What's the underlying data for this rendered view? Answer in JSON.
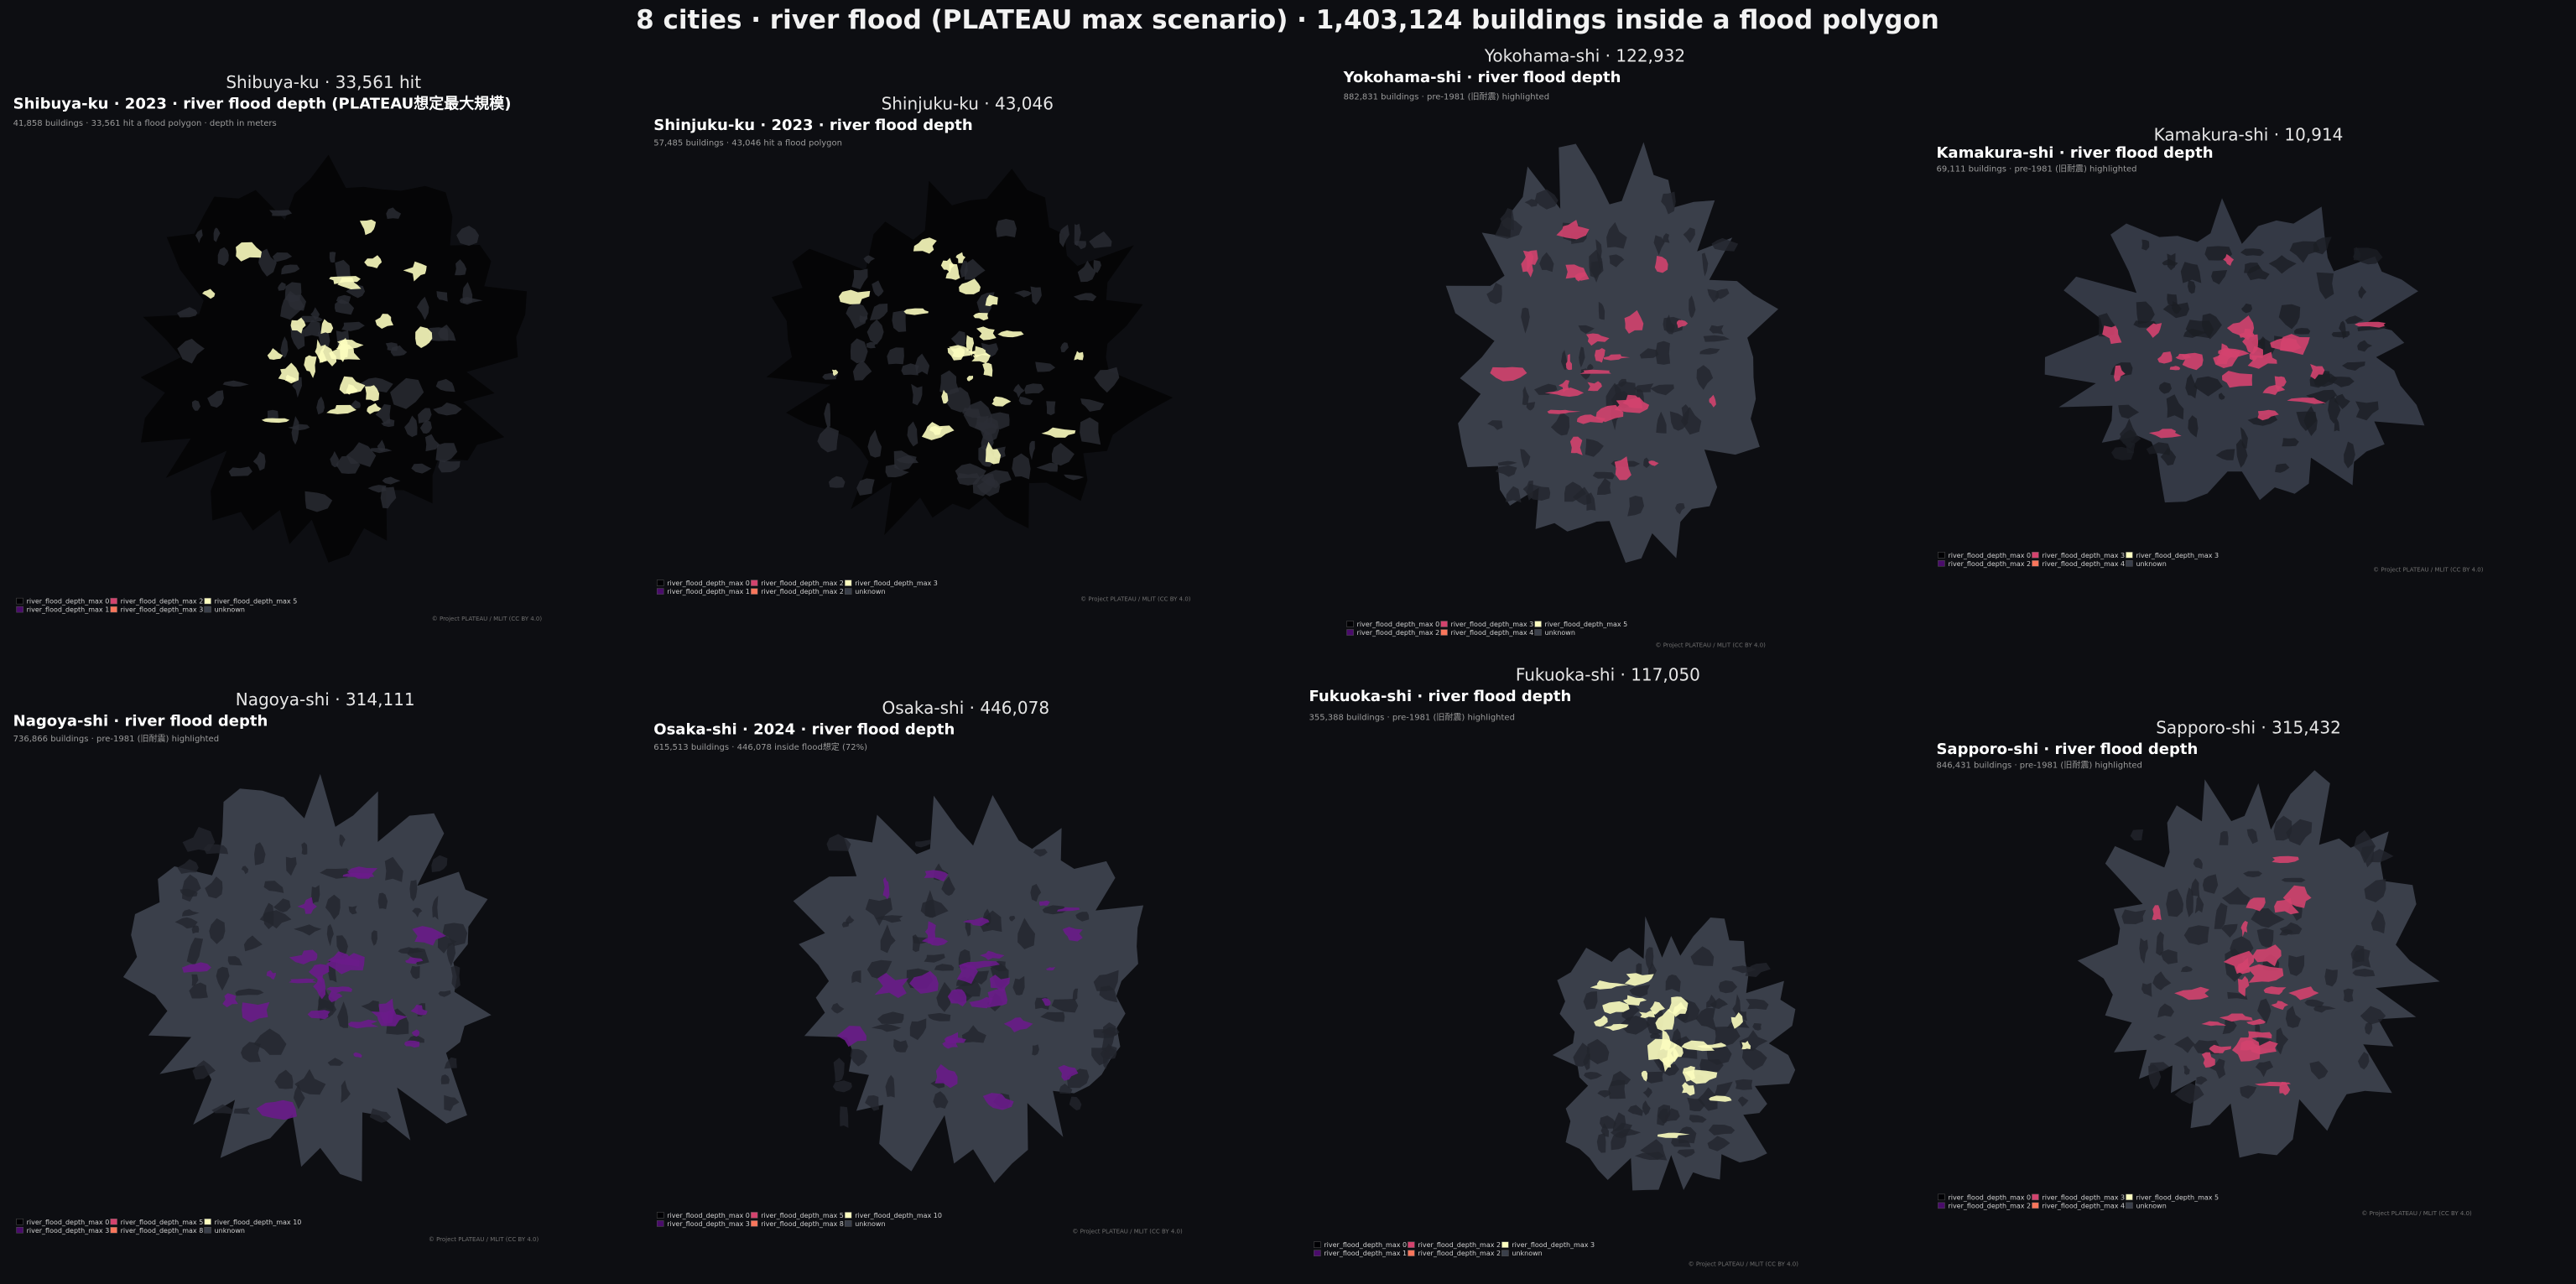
{
  "title": "8 cities · river flood (PLATEAU max scenario) · 1,403,124 buildings inside a flood polygon",
  "panels": [
    {
      "heading": "Shibuya-ku · 33,561 hit",
      "title": "Shibuya-ku · 2023 · river flood depth (PLATEAU想定最大規模)",
      "subtitle": "41,858 buildings · 33,561 hit a flood polygon · depth in meters",
      "credit": "© Project PLATEAU / MLIT (CC BY 4.0)",
      "legend": [
        {
          "label": "river_flood_depth_max 0",
          "color": "#000004"
        },
        {
          "label": "river_flood_depth_max 1",
          "color": "#4a0c6b"
        },
        {
          "label": "river_flood_depth_max 2",
          "color": "#d3436e"
        },
        {
          "label": "river_flood_depth_max 3",
          "color": "#f8765c"
        },
        {
          "label": "river_flood_depth_max 5",
          "color": "#fcfdbf"
        },
        {
          "label": "unknown",
          "color": "#3a3f4a"
        }
      ]
    },
    {
      "heading": "Shinjuku-ku · 43,046",
      "title": "Shinjuku-ku · 2023 · river flood depth",
      "subtitle": "57,485 buildings · 43,046 hit a flood polygon",
      "credit": "© Project PLATEAU / MLIT (CC BY 4.0)",
      "legend": [
        {
          "label": "river_flood_depth_max 0",
          "color": "#000004"
        },
        {
          "label": "river_flood_depth_max 1",
          "color": "#4a0c6b"
        },
        {
          "label": "river_flood_depth_max 2",
          "color": "#d3436e"
        },
        {
          "label": "river_flood_depth_max 2",
          "color": "#f8765c"
        },
        {
          "label": "river_flood_depth_max 3",
          "color": "#fcfdbf"
        },
        {
          "label": "unknown",
          "color": "#3a3f4a"
        }
      ]
    },
    {
      "heading": "Yokohama-shi · 122,932",
      "title": "Yokohama-shi · river flood depth",
      "subtitle": "882,831 buildings · pre-1981 (旧耐震) highlighted",
      "credit": "© Project PLATEAU / MLIT (CC BY 4.0)",
      "legend": [
        {
          "label": "river_flood_depth_max 0",
          "color": "#000004"
        },
        {
          "label": "river_flood_depth_max 2",
          "color": "#4a0c6b"
        },
        {
          "label": "river_flood_depth_max 3",
          "color": "#d3436e"
        },
        {
          "label": "river_flood_depth_max 4",
          "color": "#f8765c"
        },
        {
          "label": "river_flood_depth_max 5",
          "color": "#fcfdbf"
        },
        {
          "label": "unknown",
          "color": "#3a3f4a"
        }
      ]
    },
    {
      "heading": "Kamakura-shi · 10,914",
      "title": "Kamakura-shi · river flood depth",
      "subtitle": "69,111 buildings · pre-1981 (旧耐震) highlighted",
      "credit": "© Project PLATEAU / MLIT (CC BY 4.0)",
      "legend": [
        {
          "label": "river_flood_depth_max 0",
          "color": "#000004"
        },
        {
          "label": "river_flood_depth_max 2",
          "color": "#4a0c6b"
        },
        {
          "label": "river_flood_depth_max 3",
          "color": "#d3436e"
        },
        {
          "label": "river_flood_depth_max 4",
          "color": "#f8765c"
        },
        {
          "label": "river_flood_depth_max 3",
          "color": "#fcfdbf"
        },
        {
          "label": "unknown",
          "color": "#3a3f4a"
        }
      ]
    },
    {
      "heading": "Nagoya-shi · 314,111",
      "title": "Nagoya-shi · river flood depth",
      "subtitle": "736,866 buildings · pre-1981 (旧耐震) highlighted",
      "credit": "© Project PLATEAU / MLIT (CC BY 4.0)",
      "legend": [
        {
          "label": "river_flood_depth_max 0",
          "color": "#000004"
        },
        {
          "label": "river_flood_depth_max 3",
          "color": "#4a0c6b"
        },
        {
          "label": "river_flood_depth_max 5",
          "color": "#d3436e"
        },
        {
          "label": "river_flood_depth_max 8",
          "color": "#f8765c"
        },
        {
          "label": "river_flood_depth_max 10",
          "color": "#fcfdbf"
        },
        {
          "label": "unknown",
          "color": "#3a3f4a"
        }
      ]
    },
    {
      "heading": "Osaka-shi · 446,078",
      "title": "Osaka-shi · 2024 · river flood depth",
      "subtitle": "615,513 buildings · 446,078 inside flood想定 (72%)",
      "credit": "© Project PLATEAU / MLIT (CC BY 4.0)",
      "legend": [
        {
          "label": "river_flood_depth_max 0",
          "color": "#000004"
        },
        {
          "label": "river_flood_depth_max 3",
          "color": "#4a0c6b"
        },
        {
          "label": "river_flood_depth_max 5",
          "color": "#d3436e"
        },
        {
          "label": "river_flood_depth_max 8",
          "color": "#f8765c"
        },
        {
          "label": "river_flood_depth_max 10",
          "color": "#fcfdbf"
        },
        {
          "label": "unknown",
          "color": "#3a3f4a"
        }
      ]
    },
    {
      "heading": "Fukuoka-shi · 117,050",
      "title": "Fukuoka-shi · river flood depth",
      "subtitle": "355,388 buildings · pre-1981 (旧耐震) highlighted",
      "credit": "© Project PLATEAU / MLIT (CC BY 4.0)",
      "legend": [
        {
          "label": "river_flood_depth_max 0",
          "color": "#000004"
        },
        {
          "label": "river_flood_depth_max 1",
          "color": "#4a0c6b"
        },
        {
          "label": "river_flood_depth_max 2",
          "color": "#d3436e"
        },
        {
          "label": "river_flood_depth_max 2",
          "color": "#f8765c"
        },
        {
          "label": "river_flood_depth_max 3",
          "color": "#fcfdbf"
        },
        {
          "label": "unknown",
          "color": "#3a3f4a"
        }
      ]
    },
    {
      "heading": "Sapporo-shi · 315,432",
      "title": "Sapporo-shi · river flood depth",
      "subtitle": "846,431 buildings · pre-1981 (旧耐震) highlighted",
      "credit": "© Project PLATEAU / MLIT (CC BY 4.0)",
      "legend": [
        {
          "label": "river_flood_depth_max 0",
          "color": "#000004"
        },
        {
          "label": "river_flood_depth_max 2",
          "color": "#4a0c6b"
        },
        {
          "label": "river_flood_depth_max 3",
          "color": "#d3436e"
        },
        {
          "label": "river_flood_depth_max 4",
          "color": "#f8765c"
        },
        {
          "label": "river_flood_depth_max 5",
          "color": "#fcfdbf"
        },
        {
          "label": "unknown",
          "color": "#3a3f4a"
        }
      ]
    }
  ]
}
